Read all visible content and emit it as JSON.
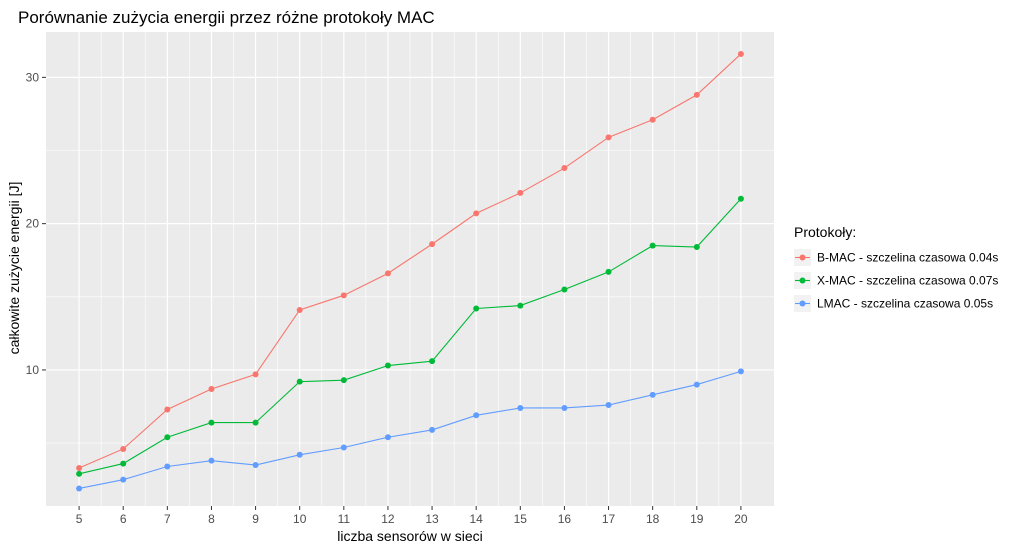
{
  "chart_data": {
    "type": "line",
    "title": "Porównanie zużycia energii przez różne protokoły MAC",
    "xlabel": "liczba sensorów w sieci",
    "ylabel": "całkowite zużycie energii [J]",
    "x": [
      5,
      6,
      7,
      8,
      9,
      10,
      11,
      12,
      13,
      14,
      15,
      16,
      17,
      18,
      19,
      20
    ],
    "xlim": [
      4.25,
      20.75
    ],
    "ylim": [
      0.7,
      33.1
    ],
    "x_ticks": [
      5,
      6,
      7,
      8,
      9,
      10,
      11,
      12,
      13,
      14,
      15,
      16,
      17,
      18,
      19,
      20
    ],
    "y_ticks": [
      10,
      20,
      30
    ],
    "grid": true,
    "background": "#ebebeb",
    "legend": {
      "title": "Protokoły:",
      "position": "right"
    },
    "series": [
      {
        "name": "B-MAC - szczelina czasowa 0.04s",
        "color": "#f8766d",
        "values": [
          3.3,
          4.6,
          7.3,
          8.7,
          9.7,
          14.1,
          15.1,
          16.6,
          18.6,
          20.7,
          22.1,
          23.8,
          25.9,
          27.1,
          28.8,
          31.6
        ]
      },
      {
        "name": "X-MAC - szczelina czasowa 0.07s",
        "color": "#00ba38",
        "values": [
          2.9,
          3.6,
          5.4,
          6.4,
          6.4,
          9.2,
          9.3,
          10.3,
          10.6,
          14.2,
          14.4,
          15.5,
          16.7,
          18.5,
          18.4,
          21.7
        ]
      },
      {
        "name": "LMAC - szczelina czasowa 0.05s",
        "color": "#619cff",
        "values": [
          1.9,
          2.5,
          3.4,
          3.8,
          3.5,
          4.2,
          4.7,
          5.4,
          5.9,
          6.9,
          7.4,
          7.4,
          7.6,
          8.3,
          9.0,
          9.9
        ]
      }
    ]
  }
}
